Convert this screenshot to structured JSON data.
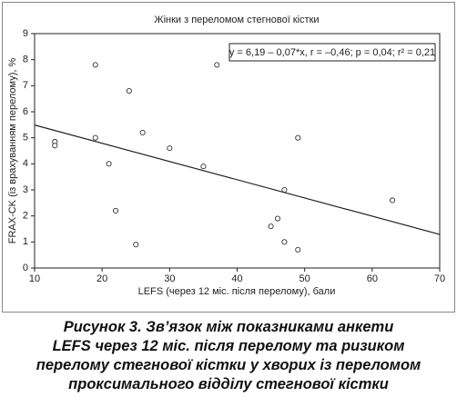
{
  "chart_data": {
    "type": "scatter",
    "title": "Жінки з переломом стегнової кістки",
    "x_label": "LEFS (через 12 міс. після перелому), бали",
    "y_label": "FRAX-CK (із врахуванням перелому), %",
    "annotation": "y = 6,19 – 0,07*x, r = –0,46; p = 0,04; r² = 0,21",
    "x": [
      13,
      13,
      19,
      19,
      21,
      22,
      24,
      25,
      26,
      30,
      35,
      37,
      45,
      46,
      47,
      47,
      49,
      49,
      63
    ],
    "values": [
      4.85,
      4.7,
      7.8,
      5.0,
      4.0,
      2.2,
      6.8,
      0.9,
      5.2,
      4.6,
      3.9,
      7.8,
      1.6,
      1.9,
      3.0,
      1.0,
      5.0,
      0.7,
      2.6
    ],
    "color": "#333333",
    "fit_line": {
      "x": [
        10,
        70
      ],
      "values": [
        5.49,
        1.29
      ],
      "color": "#222222"
    },
    "xlim": [
      10,
      70
    ],
    "xticks": [
      10,
      20,
      30,
      40,
      50,
      60,
      70
    ],
    "ylim": [
      0,
      9
    ],
    "yticks": [
      0,
      1,
      2,
      3,
      4,
      5,
      6,
      7,
      8,
      9
    ],
    "grid": false
  },
  "caption": [
    "Рисунок 3. Зв’язок між показниками анкети",
    "LEFS через 12 міс. після перелому та ризиком",
    "перелому стегнової кістки у хворих із переломом",
    "проксимального відділу стегнової кістки"
  ]
}
